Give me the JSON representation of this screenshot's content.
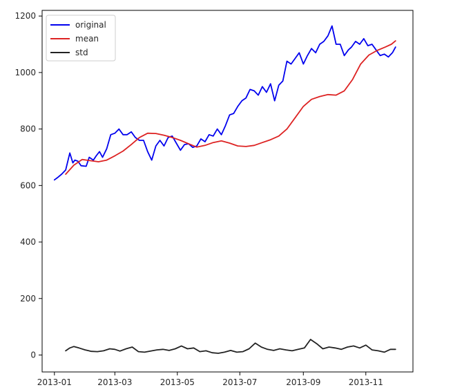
{
  "chart_data": {
    "type": "line",
    "title": "",
    "xlabel": "",
    "ylabel": "",
    "xlim": [
      "2012-12-20",
      "2013-12-17"
    ],
    "ylim": [
      -60,
      1220
    ],
    "grid": false,
    "legend_position": "top-left",
    "x_ticks": [
      "2013-01",
      "2013-03",
      "2013-05",
      "2013-07",
      "2013-09",
      "2013-11"
    ],
    "y_ticks": [
      0,
      200,
      400,
      600,
      800,
      1000,
      1200
    ],
    "series": [
      {
        "name": "original",
        "color": "#0000ee",
        "x": [
          "2013-01-01",
          "2013-01-04",
          "2013-01-08",
          "2013-01-12",
          "2013-01-16",
          "2013-01-19",
          "2013-01-21",
          "2013-01-24",
          "2013-01-27",
          "2013-02-01",
          "2013-02-04",
          "2013-02-08",
          "2013-02-11",
          "2013-02-14",
          "2013-02-17",
          "2013-02-21",
          "2013-02-25",
          "2013-03-01",
          "2013-03-05",
          "2013-03-09",
          "2013-03-13",
          "2013-03-17",
          "2013-03-21",
          "2013-03-25",
          "2013-03-29",
          "2013-04-02",
          "2013-04-06",
          "2013-04-10",
          "2013-04-14",
          "2013-04-18",
          "2013-04-22",
          "2013-04-26",
          "2013-04-30",
          "2013-05-04",
          "2013-05-08",
          "2013-05-12",
          "2013-05-16",
          "2013-05-20",
          "2013-05-24",
          "2013-05-28",
          "2013-06-01",
          "2013-06-05",
          "2013-06-09",
          "2013-06-13",
          "2013-06-17",
          "2013-06-21",
          "2013-06-25",
          "2013-06-29",
          "2013-07-03",
          "2013-07-07",
          "2013-07-11",
          "2013-07-15",
          "2013-07-19",
          "2013-07-23",
          "2013-07-27",
          "2013-07-31",
          "2013-08-04",
          "2013-08-08",
          "2013-08-12",
          "2013-08-16",
          "2013-08-20",
          "2013-08-24",
          "2013-08-28",
          "2013-09-01",
          "2013-09-05",
          "2013-09-09",
          "2013-09-13",
          "2013-09-17",
          "2013-09-21",
          "2013-09-25",
          "2013-09-29",
          "2013-10-03",
          "2013-10-07",
          "2013-10-11",
          "2013-10-15",
          "2013-10-18",
          "2013-10-22",
          "2013-10-26",
          "2013-10-30",
          "2013-11-03",
          "2013-11-07",
          "2013-11-11",
          "2013-11-15",
          "2013-11-19",
          "2013-11-23",
          "2013-11-27",
          "2013-11-30"
        ],
        "values": [
          620,
          628,
          640,
          655,
          715,
          680,
          690,
          686,
          670,
          668,
          700,
          690,
          706,
          720,
          700,
          730,
          780,
          785,
          800,
          780,
          780,
          790,
          770,
          760,
          760,
          720,
          690,
          740,
          760,
          740,
          770,
          775,
          750,
          725,
          745,
          748,
          735,
          740,
          765,
          755,
          780,
          775,
          800,
          780,
          812,
          850,
          855,
          880,
          900,
          910,
          940,
          935,
          920,
          950,
          930,
          960,
          900,
          955,
          970,
          1040,
          1030,
          1050,
          1070,
          1030,
          1060,
          1085,
          1070,
          1100,
          1110,
          1130,
          1165,
          1100,
          1100,
          1060,
          1080,
          1090,
          1110,
          1100,
          1120,
          1095,
          1100,
          1080,
          1060,
          1065,
          1055,
          1070,
          1090
        ]
      },
      {
        "name": "mean",
        "color": "#dd2222",
        "x": [
          "2013-01-12",
          "2013-01-20",
          "2013-01-28",
          "2013-02-05",
          "2013-02-13",
          "2013-02-21",
          "2013-03-01",
          "2013-03-09",
          "2013-03-17",
          "2013-03-25",
          "2013-04-02",
          "2013-04-10",
          "2013-04-18",
          "2013-04-26",
          "2013-05-04",
          "2013-05-12",
          "2013-05-20",
          "2013-05-28",
          "2013-06-05",
          "2013-06-13",
          "2013-06-21",
          "2013-06-29",
          "2013-07-07",
          "2013-07-15",
          "2013-07-23",
          "2013-07-31",
          "2013-08-08",
          "2013-08-16",
          "2013-08-24",
          "2013-09-01",
          "2013-09-09",
          "2013-09-17",
          "2013-09-25",
          "2013-10-03",
          "2013-10-11",
          "2013-10-19",
          "2013-10-27",
          "2013-11-04",
          "2013-11-12",
          "2013-11-20",
          "2013-11-26",
          "2013-11-30"
        ],
        "values": [
          640,
          672,
          692,
          688,
          684,
          690,
          705,
          722,
          745,
          770,
          785,
          784,
          778,
          770,
          760,
          748,
          736,
          742,
          752,
          758,
          750,
          740,
          738,
          742,
          752,
          762,
          775,
          800,
          840,
          880,
          905,
          915,
          922,
          920,
          935,
          975,
          1030,
          1062,
          1078,
          1090,
          1100,
          1112
        ]
      },
      {
        "name": "std",
        "color": "#222222",
        "x": [
          "2013-01-12",
          "2013-01-16",
          "2013-01-20",
          "2013-01-25",
          "2013-01-31",
          "2013-02-06",
          "2013-02-12",
          "2013-02-18",
          "2013-02-24",
          "2013-03-01",
          "2013-03-06",
          "2013-03-12",
          "2013-03-18",
          "2013-03-24",
          "2013-03-30",
          "2013-04-05",
          "2013-04-11",
          "2013-04-17",
          "2013-04-23",
          "2013-04-29",
          "2013-05-05",
          "2013-05-11",
          "2013-05-17",
          "2013-05-23",
          "2013-05-29",
          "2013-06-04",
          "2013-06-10",
          "2013-06-16",
          "2013-06-22",
          "2013-06-28",
          "2013-07-04",
          "2013-07-10",
          "2013-07-16",
          "2013-07-22",
          "2013-07-28",
          "2013-08-03",
          "2013-08-09",
          "2013-08-15",
          "2013-08-21",
          "2013-08-27",
          "2013-09-02",
          "2013-09-08",
          "2013-09-14",
          "2013-09-20",
          "2013-09-26",
          "2013-10-02",
          "2013-10-08",
          "2013-10-14",
          "2013-10-20",
          "2013-10-26",
          "2013-11-01",
          "2013-11-07",
          "2013-11-13",
          "2013-11-19",
          "2013-11-25",
          "2013-11-30"
        ],
        "values": [
          15,
          25,
          30,
          25,
          18,
          13,
          12,
          15,
          22,
          20,
          14,
          22,
          28,
          12,
          10,
          14,
          18,
          20,
          16,
          22,
          32,
          22,
          25,
          12,
          15,
          8,
          6,
          10,
          16,
          10,
          12,
          22,
          42,
          28,
          20,
          16,
          22,
          18,
          15,
          20,
          25,
          55,
          40,
          22,
          28,
          25,
          20,
          28,
          32,
          25,
          35,
          18,
          15,
          10,
          20,
          20
        ]
      }
    ]
  }
}
